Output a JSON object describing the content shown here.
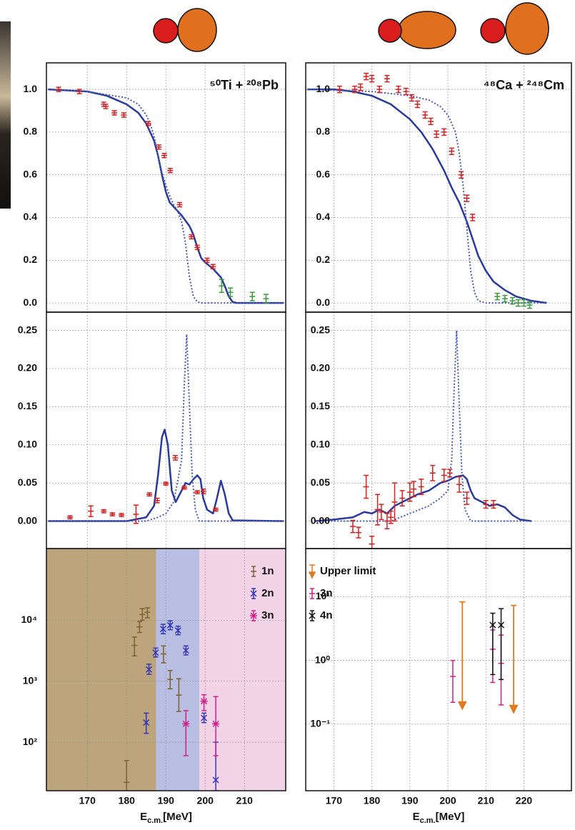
{
  "chart_data": [
    {
      "type": "line",
      "title": "⁵⁰Ti + ²⁰⁸Pb",
      "xlim": [
        159.6,
        220.5
      ],
      "ylim": [
        -0.043,
        1.124
      ],
      "xticks": [
        170,
        180,
        190,
        200,
        210
      ],
      "yticks": [
        {
          "value": 0,
          "label": "0.0"
        },
        0.2,
        0.4,
        0.6,
        0.8,
        {
          "value": 1,
          "label": "1.0"
        }
      ],
      "grid": true,
      "series": [
        {
          "style": "line",
          "color": "#2a3a9a",
          "x": [
            160,
            170,
            175,
            180,
            183,
            185,
            187,
            188,
            189,
            190,
            191,
            192,
            194,
            196,
            197,
            198,
            199,
            200,
            202,
            204,
            205,
            206,
            207,
            208,
            220
          ],
          "values": [
            1.0,
            0.99,
            0.97,
            0.93,
            0.89,
            0.84,
            0.76,
            0.69,
            0.6,
            0.52,
            0.47,
            0.45,
            0.41,
            0.36,
            0.32,
            0.26,
            0.21,
            0.19,
            0.16,
            0.12,
            0.08,
            0.03,
            0.005,
            0,
            0
          ]
        },
        {
          "style": "dotted",
          "color": "#4a5ab0",
          "x": [
            160,
            170,
            180,
            183,
            185,
            186,
            187,
            188,
            189,
            190,
            191,
            192,
            193,
            194,
            195,
            196,
            197,
            198,
            199,
            220
          ],
          "values": [
            1.0,
            0.99,
            0.96,
            0.93,
            0.88,
            0.84,
            0.78,
            0.69,
            0.61,
            0.55,
            0.5,
            0.46,
            0.43,
            0.38,
            0.28,
            0.12,
            0.03,
            0.005,
            0,
            0
          ]
        },
        {
          "style": "points",
          "marker": "dash",
          "color": "#d42020",
          "x": [
            162.7,
            168,
            174.2,
            174.7,
            176.9,
            179.3,
            185.5,
            188.2,
            189.6,
            191.1,
            193.5,
            196.5,
            198,
            200.5,
            202
          ],
          "values": [
            1.0,
            0.99,
            0.93,
            0.92,
            0.89,
            0.88,
            0.84,
            0.73,
            0.69,
            0.62,
            0.46,
            0.31,
            0.26,
            0.2,
            0.17
          ],
          "errors": [
            0.01,
            0.01,
            0.01,
            0.01,
            0.01,
            0.01,
            0.01,
            0.01,
            0.01,
            0.01,
            0.01,
            0.01,
            0.01,
            0.01,
            0.01
          ]
        },
        {
          "style": "points",
          "marker": "dash",
          "color": "#3a9a3a",
          "x": [
            204.2,
            206.4,
            212,
            215.5
          ],
          "values": [
            0.08,
            0.05,
            0.03,
            0.02
          ],
          "errors": [
            0.03,
            0.02,
            0.02,
            0.02
          ]
        }
      ]
    },
    {
      "type": "line",
      "title": "⁴⁸Ca + ²⁴⁸Cm",
      "xlim": [
        162.6,
        232.5
      ],
      "ylim": [
        -0.043,
        1.124
      ],
      "xticks": [
        170,
        180,
        190,
        200,
        210,
        220
      ],
      "yticks": [
        {
          "value": 0,
          "label": "0.0"
        },
        0.2,
        0.4,
        0.6,
        0.8,
        {
          "value": 1,
          "label": "1.0"
        }
      ],
      "grid": true,
      "series": [
        {
          "style": "line",
          "color": "#2a3a9a",
          "x": [
            163,
            170,
            175,
            180,
            185,
            190,
            193,
            196,
            199,
            201,
            203,
            205,
            206.5,
            208,
            210,
            212,
            215,
            218,
            222,
            226
          ],
          "values": [
            1.0,
            1.0,
            0.99,
            0.97,
            0.93,
            0.86,
            0.8,
            0.72,
            0.62,
            0.54,
            0.47,
            0.38,
            0.3,
            0.22,
            0.15,
            0.1,
            0.06,
            0.03,
            0.01,
            0
          ]
        },
        {
          "style": "dotted",
          "color": "#4a5ab0",
          "x": [
            163,
            180,
            190,
            195,
            198,
            200,
            202,
            203,
            204,
            205,
            206,
            207,
            208,
            210,
            226
          ],
          "values": [
            1.0,
            0.99,
            0.97,
            0.95,
            0.92,
            0.88,
            0.8,
            0.7,
            0.55,
            0.35,
            0.15,
            0.05,
            0.01,
            0,
            0
          ]
        },
        {
          "style": "points",
          "marker": "dash",
          "color": "#d42020",
          "x": [
            171.5,
            175.5,
            177,
            178.5,
            180,
            182,
            184,
            187,
            189,
            190.5,
            192,
            194,
            195.5,
            197,
            199,
            201,
            203.5,
            205,
            206.5
          ],
          "values": [
            1.0,
            1.0,
            1.01,
            1.06,
            1.05,
            1.0,
            1.05,
            1.0,
            0.99,
            0.96,
            0.93,
            0.88,
            0.85,
            0.79,
            0.8,
            0.71,
            0.6,
            0.49,
            0.4
          ],
          "errors": [
            0.015,
            0.015,
            0.015,
            0.015,
            0.015,
            0.015,
            0.015,
            0.015,
            0.015,
            0.015,
            0.015,
            0.015,
            0.015,
            0.015,
            0.015,
            0.015,
            0.015,
            0.015,
            0.015
          ]
        },
        {
          "style": "points",
          "marker": "dash",
          "color": "#3a9a3a",
          "x": [
            213,
            215,
            217,
            218.5,
            220,
            221.5
          ],
          "values": [
            0.03,
            0.02,
            0.01,
            0.0,
            0.0,
            -0.01
          ],
          "errors": [
            0.015,
            0.015,
            0.015,
            0.015,
            0.015,
            0.015
          ]
        }
      ]
    },
    {
      "type": "line",
      "xlim": [
        159.6,
        220.5
      ],
      "ylim": [
        -0.036,
        0.274
      ],
      "xticks": [
        170,
        180,
        190,
        200,
        210
      ],
      "yticks": [
        {
          "value": 0,
          "label": "0.00"
        },
        0.05,
        {
          "value": 0.1,
          "label": "0.10"
        },
        0.15,
        {
          "value": 0.2,
          "label": "0.20"
        },
        0.25
      ],
      "grid": true,
      "series": [
        {
          "style": "line",
          "color": "#2a3a9a",
          "x": [
            160,
            180,
            185,
            187,
            188,
            189,
            189.7,
            190.5,
            191.5,
            192.5,
            193.5,
            195,
            196,
            197,
            198,
            198.8,
            199.5,
            200.5,
            202,
            203,
            204,
            205,
            206,
            207,
            220
          ],
          "values": [
            0,
            0,
            0.005,
            0.02,
            0.06,
            0.11,
            0.12,
            0.1,
            0.04,
            0.025,
            0.035,
            0.05,
            0.048,
            0.055,
            0.06,
            0.055,
            0.03,
            0.015,
            0.01,
            0.03,
            0.053,
            0.035,
            0.01,
            0.001,
            0
          ]
        },
        {
          "style": "dotted",
          "color": "#4a5ab0",
          "x": [
            160,
            185,
            188,
            190,
            192,
            194,
            194.7,
            195.3,
            196,
            196.7,
            197.5,
            198.5,
            220
          ],
          "values": [
            0,
            0,
            0.005,
            0.01,
            0.025,
            0.08,
            0.18,
            0.245,
            0.15,
            0.06,
            0.015,
            0,
            0
          ]
        },
        {
          "style": "points",
          "marker": "dash",
          "color": "#d42020",
          "x": [
            165.6,
            170.9,
            174.2,
            176.4,
            178.7,
            182.4,
            185.8,
            187.8,
            190,
            192.4,
            194.7,
            198,
            199.6,
            202.7
          ],
          "values": [
            0.005,
            0.013,
            0.013,
            0.009,
            0.008,
            0.009,
            0.035,
            0.027,
            0.049,
            0.083,
            0.044,
            0.038,
            0.039,
            0.015
          ],
          "errors": [
            0.002,
            0.007,
            0.002,
            0.002,
            0.002,
            0.012,
            0.002,
            0.003,
            0.002,
            0.003,
            0.002,
            0.002,
            0.003,
            0.002
          ]
        }
      ]
    },
    {
      "type": "line",
      "xlim": [
        162.6,
        232.5
      ],
      "ylim": [
        -0.036,
        0.274
      ],
      "xticks": [
        170,
        180,
        190,
        200,
        210,
        220
      ],
      "yticks": [
        {
          "value": 0,
          "label": "0.00"
        },
        0.05,
        {
          "value": 0.1,
          "label": "0.10"
        },
        0.15,
        {
          "value": 0.2,
          "label": "0.20"
        },
        0.25
      ],
      "grid": true,
      "series": [
        {
          "style": "line",
          "color": "#2a3a9a",
          "x": [
            165,
            170,
            175,
            178,
            180,
            182,
            184,
            186,
            188,
            190,
            192,
            195,
            198,
            200,
            202,
            204,
            205,
            206,
            207,
            209,
            211,
            213,
            215,
            217,
            219,
            222
          ],
          "values": [
            0,
            0.002,
            0.005,
            0.012,
            0.01,
            0.015,
            0.01,
            0.02,
            0.025,
            0.03,
            0.035,
            0.04,
            0.05,
            0.053,
            0.058,
            0.06,
            0.055,
            0.04,
            0.03,
            0.025,
            0.02,
            0.022,
            0.018,
            0.008,
            0.002,
            0
          ]
        },
        {
          "style": "dotted",
          "color": "#4a5ab0",
          "x": [
            165,
            185,
            190,
            195,
            198,
            200,
            201,
            201.7,
            202.3,
            203,
            203.7,
            204.5,
            206,
            222
          ],
          "values": [
            0,
            0,
            0.01,
            0.02,
            0.03,
            0.04,
            0.08,
            0.18,
            0.25,
            0.15,
            0.06,
            0.015,
            0,
            0
          ]
        },
        {
          "style": "points",
          "marker": "dash",
          "color": "#d42020",
          "x": [
            175,
            176.5,
            178.5,
            180,
            181.5,
            182.5,
            184,
            185,
            186,
            188,
            190,
            191,
            193,
            196,
            199,
            200.5,
            203,
            205,
            210,
            212
          ],
          "values": [
            -0.007,
            -0.015,
            0.045,
            -0.03,
            0.015,
            0.012,
            0.0,
            0.005,
            0.025,
            0.03,
            0.038,
            0.042,
            0.045,
            0.063,
            0.06,
            0.063,
            0.048,
            0.03,
            0.022,
            0.022
          ],
          "errors": [
            0.008,
            0.007,
            0.015,
            0.01,
            0.02,
            0.01,
            0.01,
            0.008,
            0.025,
            0.01,
            0.012,
            0.01,
            0.01,
            0.01,
            0.008,
            0.005,
            0.01,
            0.008,
            0.005,
            0.005
          ]
        }
      ]
    },
    {
      "type": "line",
      "xlim": [
        159.6,
        220.5
      ],
      "ylim": [
        16,
        150000
      ],
      "ylog": true,
      "xticks": [
        170,
        180,
        190,
        200,
        210
      ],
      "yticks": [
        {
          "value": 100,
          "label": "10²"
        },
        {
          "value": 1000,
          "label": "10³"
        },
        {
          "value": 10000,
          "label": "10⁴"
        }
      ],
      "grid": true,
      "legend": "upper right",
      "xlabel": {
        "main": "E",
        "sub": "c.m.",
        "unit": "[MeV]"
      },
      "bands": [
        {
          "x": [
            159.6,
            187.5
          ],
          "color": "#bca57c"
        },
        {
          "x": [
            187.5,
            198.5
          ],
          "color": "#b9bee3"
        },
        {
          "x": [
            198.5,
            220.5
          ],
          "color": "#f3d4e6"
        }
      ],
      "series": [
        {
          "name": "1n",
          "style": "points",
          "marker": "dash",
          "color": "#7d6030",
          "x": [
            180,
            182,
            183.3,
            184,
            185.3,
            189.4,
            191.1,
            193.3
          ],
          "values": [
            22,
            3860,
            7800,
            12400,
            13500,
            2800,
            1070,
            590
          ],
          "lower": [
            16,
            2600,
            6300,
            10000,
            11000,
            2000,
            750,
            320
          ],
          "upper": [
            50,
            5300,
            9500,
            15500,
            16000,
            3800,
            1500,
            1100
          ]
        },
        {
          "name": "2n",
          "style": "points",
          "marker": "cross",
          "color": "#3535b8",
          "x": [
            185,
            185.7,
            187.4,
            189.3,
            191.1,
            193.1,
            195.1,
            199.7,
            202.7
          ],
          "values": [
            210,
            1560,
            2940,
            7200,
            8300,
            6800,
            3200,
            250,
            24
          ],
          "lower": [
            140,
            1300,
            2500,
            6000,
            7000,
            5800,
            2700,
            210,
            16
          ],
          "upper": [
            300,
            1900,
            3500,
            8600,
            9800,
            8000,
            3800,
            300,
            100
          ]
        },
        {
          "name": "3n",
          "style": "points",
          "marker": "star",
          "color": "#d0208a",
          "x": [
            195.1,
            199.7,
            202.7
          ],
          "values": [
            200,
            470,
            200
          ],
          "lower": [
            60,
            330,
            60
          ],
          "upper": [
            330,
            600,
            560
          ]
        }
      ]
    },
    {
      "type": "line",
      "xlim": [
        162.6,
        232.5
      ],
      "ylim": [
        0.009,
        57
      ],
      "ylog": true,
      "xticks": [
        170,
        180,
        190,
        200,
        210,
        220
      ],
      "yticks": [
        {
          "value": 0.1,
          "label": "10⁻¹"
        },
        {
          "value": 1,
          "label": "10⁰"
        },
        {
          "value": 10,
          "label": "10¹"
        }
      ],
      "grid": true,
      "legend": "upper left",
      "xlabel": {
        "main": "E",
        "sub": "c.m.",
        "unit": "[MeV]"
      },
      "series": [
        {
          "name": "Upper limit",
          "style": "upper_limit",
          "color": "#e07a20",
          "x": [
            203.8,
            217.3
          ],
          "values": [
            8.3,
            7.3
          ]
        },
        {
          "name": "3n",
          "style": "points",
          "marker": "dash",
          "color": "#d0208a",
          "x": [
            201.3,
            211.8,
            214
          ],
          "values": [
            0.56,
            1.5,
            0.9
          ],
          "lower": [
            0.22,
            0.45,
            0.2
          ],
          "upper": [
            1.0,
            3.0,
            2.5
          ]
        },
        {
          "name": "4n",
          "style": "points",
          "marker": "cross",
          "color": "#111111",
          "x": [
            211.8,
            214
          ],
          "values": [
            3.6,
            3.6
          ],
          "lower": [
            0.6,
            0.5
          ],
          "upper": [
            5.5,
            6.5
          ]
        }
      ]
    }
  ]
}
